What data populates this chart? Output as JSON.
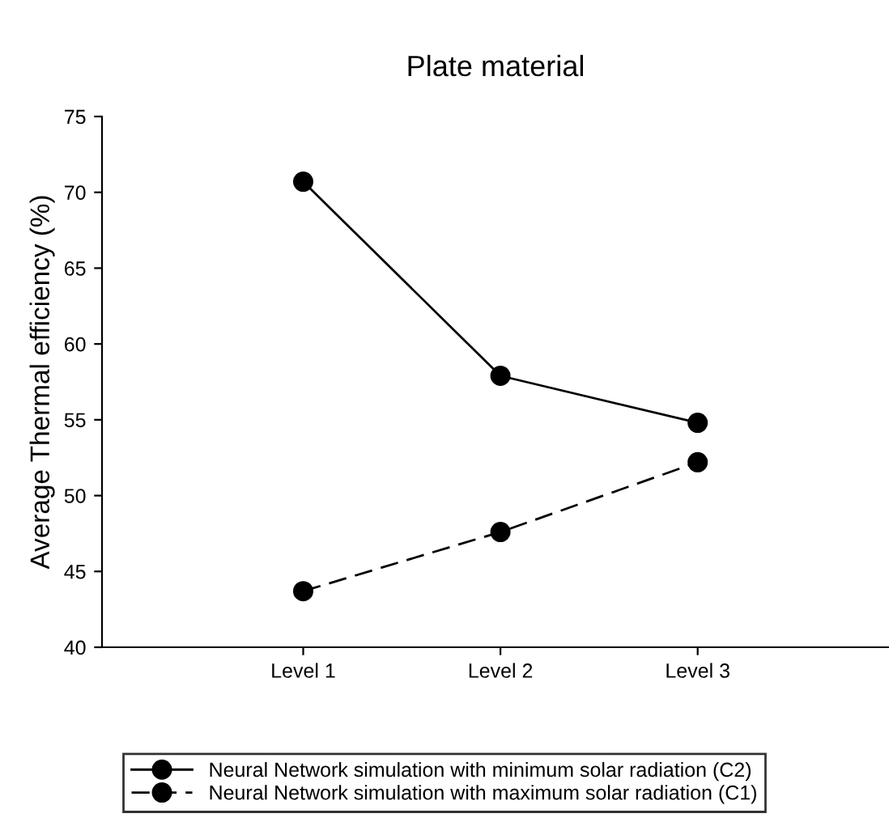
{
  "chart_data": {
    "type": "line",
    "title": "Plate material",
    "ylabel": "Average Thermal efficiency (%)",
    "categories": [
      "Level 1",
      "Level 2",
      "Level 3"
    ],
    "series": [
      {
        "name": "Neural Network simulation with minimum solar radiation (C2)",
        "color": "#000000",
        "values": [
          70.7,
          57.9,
          54.8
        ],
        "line_style": "solid"
      },
      {
        "name": "Neural Network simulation with maximum solar radiation (C1)",
        "color": "#000000",
        "values": [
          43.7,
          47.6,
          52.2
        ],
        "line_style": "dashed"
      }
    ],
    "ylim": [
      40,
      75
    ],
    "yticks": [
      40,
      45,
      50,
      55,
      60,
      65,
      70,
      75
    ],
    "marker": "circle",
    "legend": "bottom",
    "grid": false
  }
}
